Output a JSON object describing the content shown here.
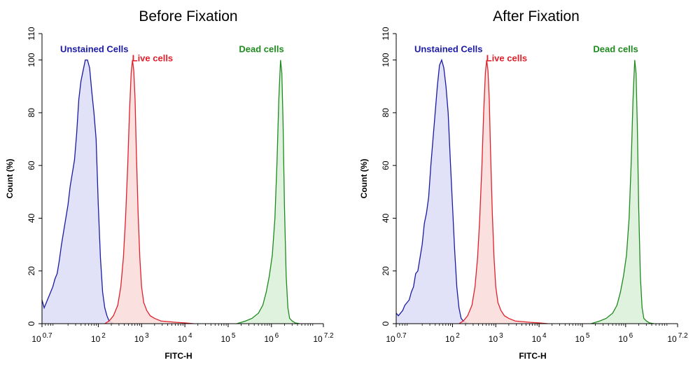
{
  "chart_data": [
    {
      "type": "area",
      "title": "Before Fixation",
      "xlabel": "FITC-H",
      "ylabel": "Count  (%)",
      "x_scale": "log10",
      "xlim": [
        0.7,
        7.2
      ],
      "ylim": [
        0,
        110
      ],
      "x_ticks": [
        {
          "base": "10",
          "exp": "0.7",
          "value": 0.7
        },
        {
          "base": "10",
          "exp": "2",
          "value": 2
        },
        {
          "base": "10",
          "exp": "3",
          "value": 3
        },
        {
          "base": "10",
          "exp": "4",
          "value": 4
        },
        {
          "base": "10",
          "exp": "5",
          "value": 5
        },
        {
          "base": "10",
          "exp": "6",
          "value": 6
        },
        {
          "base": "10",
          "exp": "7.2",
          "value": 7.2
        }
      ],
      "y_ticks": [
        0,
        20,
        40,
        60,
        80,
        100,
        110
      ],
      "grid": false,
      "series": [
        {
          "name": "Unstained Cells",
          "color": "#1a1aa6",
          "fill": "#dcdcf7",
          "x": [
            0.7,
            0.75,
            0.8,
            0.85,
            0.9,
            0.95,
            1.0,
            1.05,
            1.1,
            1.15,
            1.2,
            1.25,
            1.3,
            1.35,
            1.4,
            1.45,
            1.5,
            1.55,
            1.6,
            1.65,
            1.7,
            1.75,
            1.8,
            1.85,
            1.9,
            1.95,
            2.0,
            2.05,
            2.1,
            2.15,
            2.2,
            2.25,
            2.3,
            2.35
          ],
          "y": [
            9,
            6,
            8,
            10,
            12,
            14,
            17,
            19,
            24,
            30,
            35,
            40,
            45,
            52,
            57,
            62,
            72,
            85,
            92,
            96,
            100,
            100,
            97,
            88,
            80,
            70,
            45,
            25,
            12,
            6,
            3,
            1,
            0.5,
            0
          ]
        },
        {
          "name": "Live cells",
          "color": "#e0202a",
          "fill": "#fadada",
          "x": [
            2.15,
            2.25,
            2.35,
            2.45,
            2.52,
            2.58,
            2.63,
            2.68,
            2.72,
            2.76,
            2.79,
            2.82,
            2.85,
            2.88,
            2.92,
            2.96,
            3.0,
            3.05,
            3.12,
            3.2,
            3.3,
            3.45,
            3.6,
            3.8,
            4.0,
            4.2
          ],
          "y": [
            0,
            1,
            3,
            7,
            14,
            25,
            40,
            60,
            80,
            95,
            100,
            96,
            85,
            65,
            42,
            25,
            14,
            8,
            5,
            3,
            2,
            1,
            0.8,
            0.5,
            0.3,
            0
          ]
        },
        {
          "name": "Dead cells",
          "color": "#1e8a1e",
          "fill": "#d8f0d8",
          "x": [
            5.2,
            5.4,
            5.55,
            5.7,
            5.8,
            5.88,
            5.95,
            6.02,
            6.08,
            6.13,
            6.17,
            6.21,
            6.24,
            6.27,
            6.3,
            6.34,
            6.38,
            6.42,
            6.48,
            6.55,
            6.65
          ],
          "y": [
            0,
            1,
            2,
            4,
            7,
            12,
            18,
            26,
            40,
            62,
            85,
            100,
            95,
            75,
            45,
            18,
            6,
            2,
            1,
            0.3,
            0
          ]
        }
      ]
    },
    {
      "type": "area",
      "title": "After Fixation",
      "xlabel": "FITC-H",
      "ylabel": "Count  (%)",
      "x_scale": "log10",
      "xlim": [
        0.7,
        7.2
      ],
      "ylim": [
        0,
        110
      ],
      "x_ticks": [
        {
          "base": "10",
          "exp": "0.7",
          "value": 0.7
        },
        {
          "base": "10",
          "exp": "2",
          "value": 2
        },
        {
          "base": "10",
          "exp": "3",
          "value": 3
        },
        {
          "base": "10",
          "exp": "4",
          "value": 4
        },
        {
          "base": "10",
          "exp": "5",
          "value": 5
        },
        {
          "base": "10",
          "exp": "6",
          "value": 6
        },
        {
          "base": "10",
          "exp": "7.2",
          "value": 7.2
        }
      ],
      "y_ticks": [
        0,
        20,
        40,
        60,
        80,
        100,
        110
      ],
      "grid": false,
      "series": [
        {
          "name": "Unstained Cells",
          "color": "#1a1aa6",
          "fill": "#dcdcf7",
          "x": [
            0.7,
            0.75,
            0.8,
            0.85,
            0.9,
            0.95,
            1.0,
            1.05,
            1.1,
            1.15,
            1.2,
            1.25,
            1.3,
            1.35,
            1.4,
            1.45,
            1.5,
            1.55,
            1.6,
            1.65,
            1.7,
            1.75,
            1.8,
            1.85,
            1.9,
            1.95,
            2.0,
            2.05,
            2.1,
            2.15,
            2.2,
            2.25,
            2.3,
            2.35
          ],
          "y": [
            4,
            3,
            4,
            5,
            7,
            8,
            9,
            12,
            14,
            19,
            20,
            25,
            30,
            38,
            42,
            48,
            60,
            70,
            80,
            90,
            98,
            100,
            97,
            90,
            80,
            62,
            45,
            28,
            14,
            6,
            2,
            1,
            0.5,
            0
          ]
        },
        {
          "name": "Live cells",
          "color": "#e0202a",
          "fill": "#fadada",
          "x": [
            2.15,
            2.25,
            2.35,
            2.45,
            2.52,
            2.58,
            2.63,
            2.68,
            2.72,
            2.76,
            2.79,
            2.82,
            2.85,
            2.88,
            2.92,
            2.96,
            3.0,
            3.05,
            3.12,
            3.2,
            3.3,
            3.45,
            3.6,
            3.8,
            4.0,
            4.2
          ],
          "y": [
            0,
            1,
            3,
            7,
            14,
            25,
            40,
            60,
            80,
            95,
            100,
            96,
            85,
            65,
            42,
            25,
            14,
            8,
            5,
            3,
            2,
            1,
            0.8,
            0.5,
            0.3,
            0
          ]
        },
        {
          "name": "Dead cells",
          "color": "#1e8a1e",
          "fill": "#d8f0d8",
          "x": [
            5.2,
            5.4,
            5.55,
            5.7,
            5.8,
            5.88,
            5.95,
            6.02,
            6.08,
            6.13,
            6.17,
            6.21,
            6.24,
            6.27,
            6.3,
            6.34,
            6.38,
            6.42,
            6.48,
            6.55,
            6.65
          ],
          "y": [
            0,
            1,
            2,
            4,
            7,
            12,
            18,
            26,
            40,
            62,
            85,
            100,
            95,
            75,
            45,
            18,
            6,
            2,
            1,
            0.3,
            0
          ]
        }
      ]
    }
  ]
}
